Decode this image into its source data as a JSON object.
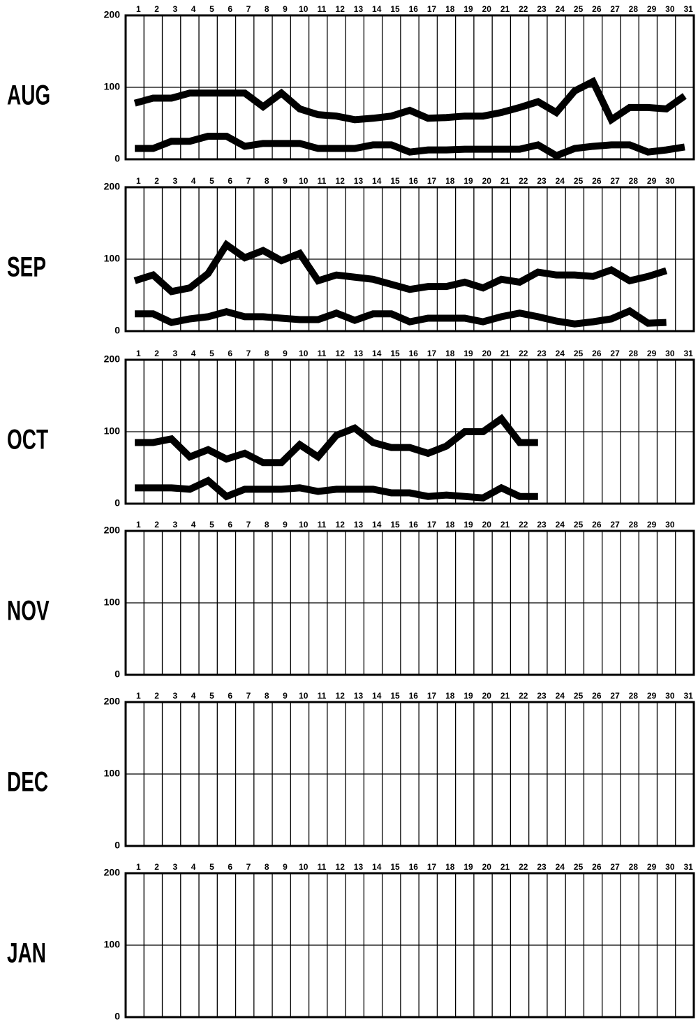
{
  "chart_data": [
    {
      "type": "line",
      "title": "AUG",
      "categories": [
        "1",
        "2",
        "3",
        "4",
        "5",
        "6",
        "7",
        "8",
        "9",
        "10",
        "11",
        "12",
        "13",
        "14",
        "15",
        "16",
        "17",
        "18",
        "19",
        "20",
        "21",
        "22",
        "23",
        "24",
        "25",
        "26",
        "27",
        "28",
        "29",
        "30",
        "31"
      ],
      "ylim": [
        0,
        200
      ],
      "yticks": [
        0,
        100,
        200
      ],
      "grid": true,
      "series": [
        {
          "color": "#000000",
          "values": [
            78,
            85,
            85,
            92,
            92,
            92,
            92,
            73,
            92,
            70,
            62,
            60,
            55,
            57,
            60,
            68,
            57,
            58,
            60,
            60,
            65,
            72,
            80,
            65,
            95,
            108,
            55,
            72,
            72,
            70,
            88
          ]
        },
        {
          "color": "#000000",
          "values": [
            15,
            15,
            25,
            25,
            32,
            32,
            18,
            22,
            22,
            22,
            15,
            15,
            15,
            20,
            20,
            10,
            13,
            13,
            14,
            14,
            14,
            14,
            20,
            5,
            15,
            18,
            20,
            20,
            10,
            13,
            17
          ]
        }
      ]
    },
    {
      "type": "line",
      "title": "SEP",
      "categories": [
        "1",
        "2",
        "3",
        "4",
        "5",
        "6",
        "7",
        "8",
        "9",
        "10",
        "11",
        "12",
        "13",
        "14",
        "15",
        "16",
        "17",
        "18",
        "19",
        "20",
        "21",
        "22",
        "23",
        "24",
        "25",
        "26",
        "27",
        "28",
        "29",
        "30"
      ],
      "ylim": [
        0,
        200
      ],
      "yticks": [
        0,
        100,
        200
      ],
      "grid": true,
      "series": [
        {
          "color": "#000000",
          "values": [
            70,
            78,
            55,
            60,
            80,
            120,
            102,
            112,
            98,
            108,
            70,
            78,
            75,
            72,
            65,
            58,
            62,
            62,
            68,
            60,
            72,
            68,
            82,
            78,
            78,
            76,
            85,
            70,
            76,
            84
          ]
        },
        {
          "color": "#000000",
          "values": [
            24,
            24,
            12,
            17,
            20,
            27,
            20,
            20,
            18,
            16,
            16,
            25,
            15,
            24,
            24,
            13,
            18,
            18,
            18,
            13,
            20,
            25,
            20,
            14,
            10,
            13,
            17,
            28,
            11,
            12
          ]
        }
      ]
    },
    {
      "type": "line",
      "title": "OCT",
      "categories": [
        "1",
        "2",
        "3",
        "4",
        "5",
        "6",
        "7",
        "8",
        "9",
        "10",
        "11",
        "12",
        "13",
        "14",
        "15",
        "16",
        "17",
        "18",
        "19",
        "20",
        "21",
        "22",
        "23",
        "24",
        "25",
        "26",
        "27",
        "28",
        "29",
        "30",
        "31"
      ],
      "ylim": [
        0,
        200
      ],
      "yticks": [
        0,
        100,
        200
      ],
      "grid": true,
      "series": [
        {
          "color": "#000000",
          "values": [
            85,
            85,
            90,
            65,
            75,
            62,
            70,
            57,
            57,
            82,
            65,
            95,
            105,
            85,
            78,
            78,
            70,
            80,
            100,
            100,
            118,
            85,
            85,
            null,
            null,
            null,
            null,
            null,
            null,
            null,
            null
          ]
        },
        {
          "color": "#000000",
          "values": [
            22,
            22,
            22,
            20,
            32,
            10,
            20,
            20,
            20,
            22,
            17,
            20,
            20,
            20,
            15,
            15,
            10,
            12,
            10,
            8,
            22,
            10,
            10,
            null,
            null,
            null,
            null,
            null,
            null,
            null,
            null
          ]
        }
      ]
    },
    {
      "type": "line",
      "title": "NOV",
      "categories": [
        "1",
        "2",
        "3",
        "4",
        "5",
        "6",
        "7",
        "8",
        "9",
        "10",
        "11",
        "12",
        "13",
        "14",
        "15",
        "16",
        "17",
        "18",
        "19",
        "20",
        "21",
        "22",
        "23",
        "24",
        "25",
        "26",
        "27",
        "28",
        "29",
        "30"
      ],
      "ylim": [
        0,
        200
      ],
      "yticks": [
        0,
        100,
        200
      ],
      "grid": true,
      "series": []
    },
    {
      "type": "line",
      "title": "DEC",
      "categories": [
        "1",
        "2",
        "3",
        "4",
        "5",
        "6",
        "7",
        "8",
        "9",
        "10",
        "11",
        "12",
        "13",
        "14",
        "15",
        "16",
        "17",
        "18",
        "19",
        "20",
        "21",
        "22",
        "23",
        "24",
        "25",
        "26",
        "27",
        "28",
        "29",
        "30",
        "31"
      ],
      "ylim": [
        0,
        200
      ],
      "yticks": [
        0,
        100,
        200
      ],
      "grid": true,
      "series": []
    },
    {
      "type": "line",
      "title": "JAN",
      "categories": [
        "1",
        "2",
        "3",
        "4",
        "5",
        "6",
        "7",
        "8",
        "9",
        "10",
        "11",
        "12",
        "13",
        "14",
        "15",
        "16",
        "17",
        "18",
        "19",
        "20",
        "21",
        "22",
        "23",
        "24",
        "25",
        "26",
        "27",
        "28",
        "29",
        "30",
        "31"
      ],
      "ylim": [
        0,
        200
      ],
      "yticks": [
        0,
        100,
        200
      ],
      "grid": true,
      "series": []
    }
  ]
}
